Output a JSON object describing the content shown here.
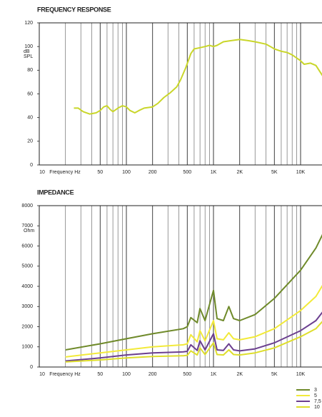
{
  "chart_data": [
    {
      "type": "line",
      "title": "FREQUENCY RESPONSE",
      "xlabel": "Frequency Hz",
      "ylabel": [
        "dB",
        "SPL"
      ],
      "log_x": true,
      "xlim": [
        10,
        20000
      ],
      "xticks": [
        10,
        50,
        100,
        200,
        500,
        {
          "value": 1000,
          "label": "1K"
        },
        {
          "value": 2000,
          "label": "2K"
        },
        {
          "value": 5000,
          "label": "5K"
        },
        {
          "value": 10000,
          "label": "10K"
        }
      ],
      "ylim": [
        0,
        120
      ],
      "yticks": [
        0,
        20,
        40,
        60,
        80,
        100,
        120
      ],
      "x": [
        25,
        28,
        32,
        38,
        45,
        50,
        55,
        60,
        65,
        70,
        80,
        90,
        100,
        110,
        125,
        140,
        160,
        200,
        230,
        270,
        320,
        380,
        420,
        480,
        550,
        600,
        700,
        800,
        900,
        1000,
        1100,
        1300,
        1600,
        2000,
        2500,
        3000,
        4000,
        4500,
        5000,
        6000,
        7000,
        8000,
        10000,
        11000,
        13000,
        15000,
        18000,
        20000
      ],
      "series": [
        {
          "color": "#c9d62a",
          "values": [
            48,
            48,
            45,
            43,
            44,
            46,
            49,
            50,
            47,
            45,
            48,
            50,
            49,
            46,
            44,
            46,
            48,
            49,
            52,
            57,
            61,
            66,
            72,
            82,
            94,
            98,
            99,
            100,
            101,
            100,
            101,
            104,
            105,
            106,
            105,
            104,
            102,
            100,
            98,
            96,
            95,
            93,
            88,
            85,
            86,
            84,
            75,
            70
          ]
        }
      ]
    },
    {
      "type": "line",
      "title": "IMPEDANCE",
      "xlabel": "Frequency Hz",
      "ylabel": [
        "Ohm"
      ],
      "log_x": true,
      "xlim": [
        10,
        20000
      ],
      "xticks": [
        10,
        50,
        100,
        200,
        500,
        {
          "value": 1000,
          "label": "1K"
        },
        {
          "value": 2000,
          "label": "2K"
        },
        {
          "value": 5000,
          "label": "5K"
        },
        {
          "value": 10000,
          "label": "10K"
        }
      ],
      "ylim": [
        0,
        8000
      ],
      "yticks": [
        0,
        1000,
        2000,
        3000,
        4000,
        5000,
        6000,
        7000,
        8000
      ],
      "x": [
        20,
        50,
        100,
        200,
        450,
        500,
        550,
        650,
        700,
        800,
        1000,
        1100,
        1300,
        1500,
        1700,
        2000,
        3000,
        5000,
        10000,
        15000,
        20000
      ],
      "series": [
        {
          "name": "3",
          "color": "#6f8a2a",
          "values": [
            850,
            1150,
            1400,
            1650,
            1900,
            2000,
            2450,
            2200,
            2900,
            2300,
            3800,
            2400,
            2300,
            3000,
            2400,
            2300,
            2600,
            3400,
            4800,
            5900,
            7000
          ]
        },
        {
          "name": "5",
          "color": "#f2ea3a",
          "values": [
            500,
            700,
            850,
            1000,
            1100,
            1150,
            1600,
            1250,
            1800,
            1300,
            2300,
            1400,
            1350,
            1700,
            1400,
            1350,
            1500,
            1900,
            2800,
            3500,
            4400
          ]
        },
        {
          "name": "7,5",
          "color": "#6b3f8f",
          "values": [
            300,
            450,
            600,
            700,
            750,
            780,
            1100,
            820,
            1300,
            850,
            1650,
            850,
            820,
            1150,
            850,
            800,
            900,
            1200,
            1800,
            2300,
            3000
          ]
        },
        {
          "name": "10",
          "color": "#dede2c",
          "values": [
            250,
            350,
            450,
            520,
            560,
            580,
            800,
            600,
            950,
            620,
            1200,
            620,
            600,
            850,
            620,
            600,
            700,
            950,
            1500,
            1900,
            2500
          ]
        }
      ]
    }
  ]
}
